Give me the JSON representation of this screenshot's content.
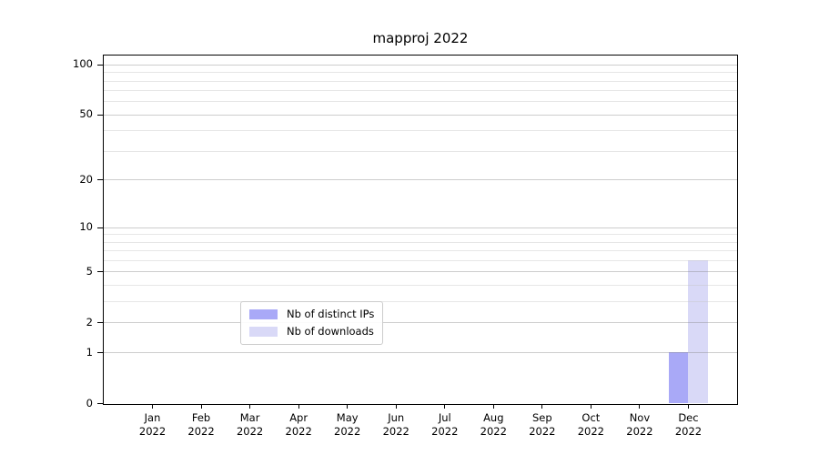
{
  "figure": {
    "background": "#ffffff",
    "spine_color": "#000000"
  },
  "chart_data": {
    "type": "bar",
    "title": "mapproj 2022",
    "x_categories": [
      "Jan",
      "Feb",
      "Mar",
      "Apr",
      "May",
      "Jun",
      "Jul",
      "Aug",
      "Sep",
      "Oct",
      "Nov",
      "Dec"
    ],
    "x_year_label": "2022",
    "series": [
      {
        "name": "Nb of distinct IPs",
        "color": "#a9a9f7",
        "values": [
          0,
          0,
          0,
          0,
          0,
          0,
          0,
          0,
          0,
          0,
          0,
          1
        ]
      },
      {
        "name": "Nb of downloads",
        "color": "#d9d9f7",
        "values": [
          0,
          0,
          0,
          0,
          0,
          0,
          0,
          0,
          0,
          0,
          0,
          6
        ]
      }
    ],
    "y_scale": "log10(1+x)",
    "ylim": [
      0,
      113
    ],
    "y_major_ticks": [
      0,
      1,
      2,
      5,
      10,
      20,
      50,
      100
    ],
    "y_minor_gridlines": [
      3,
      4,
      6,
      7,
      8,
      9,
      30,
      40,
      60,
      70,
      80,
      90
    ],
    "grid": {
      "major_color": "rgba(130,130,130,0.40)",
      "minor_color": "rgba(195,195,195,0.42)"
    },
    "legend_position": "lower center"
  }
}
